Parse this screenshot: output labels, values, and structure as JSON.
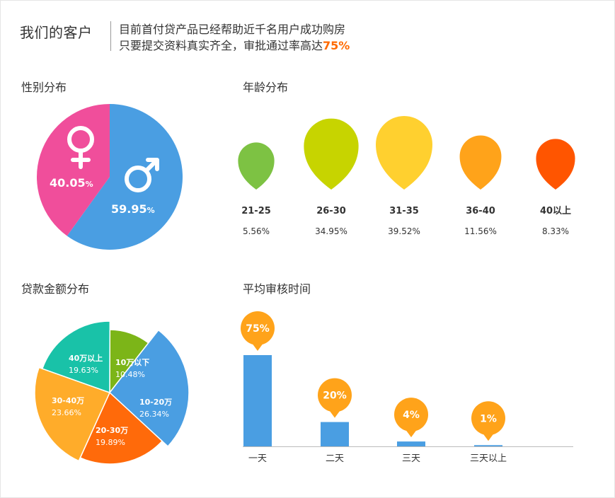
{
  "header": {
    "title": "我们的客户",
    "intro_line1": "目前首付贷产品已经帮助近千名用户成功购房",
    "intro_line2_prefix": "只要提交资料真实齐全，审批通过率高达",
    "intro_line2_percent": "75%"
  },
  "sections": {
    "gender": "性别分布",
    "age": "年龄分布",
    "loan": "贷款金额分布",
    "review": "平均审核时间"
  },
  "chart_data": [
    {
      "type": "pie",
      "categories": [
        "female",
        "male"
      ],
      "values": [
        40.05,
        59.95
      ],
      "labels": [
        "40.05",
        "59.95"
      ],
      "unit": "%",
      "colors": [
        "#f04e9b",
        "#4a9ee2"
      ],
      "icons": [
        "female-symbol-icon",
        "male-symbol-icon"
      ]
    },
    {
      "type": "scatter",
      "categories": [
        "21-25",
        "26-30",
        "31-35",
        "36-40",
        "40以上"
      ],
      "values": [
        5.56,
        34.95,
        39.52,
        11.56,
        8.33
      ],
      "labels": [
        "5.56%",
        "34.95%",
        "39.52%",
        "11.56%",
        "8.33%"
      ],
      "colors": [
        "#7dc243",
        "#c7d400",
        "#ffd02f",
        "#ffa31a",
        "#ff5500"
      ],
      "marker": "map-pin-icon"
    },
    {
      "type": "pie",
      "categories": [
        "10万以下",
        "10-20万",
        "20-30万",
        "30-40万",
        "40万以上"
      ],
      "values": [
        10.48,
        26.34,
        19.89,
        23.66,
        19.63
      ],
      "labels": [
        "10.48%",
        "26.34%",
        "19.89%",
        "23.66%",
        "19.63%"
      ],
      "colors": [
        "#7cb518",
        "#4a9ee2",
        "#ff6a0a",
        "#ffac2a",
        "#19c2a8"
      ]
    },
    {
      "type": "bar",
      "categories": [
        "一天",
        "二天",
        "三天",
        "三天以上"
      ],
      "values": [
        75,
        20,
        4,
        1
      ],
      "labels": [
        "75%",
        "20%",
        "4%",
        "1%"
      ],
      "bar_color": "#4a9ee2",
      "callout_color": "#ffa31a"
    }
  ]
}
